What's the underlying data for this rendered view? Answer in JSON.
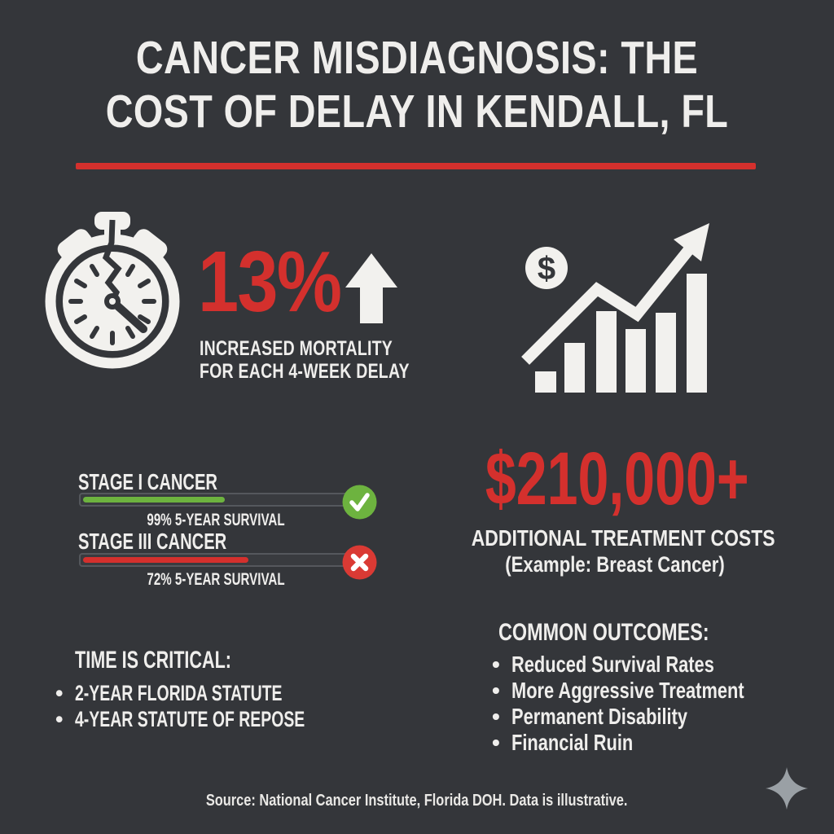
{
  "infographic": {
    "title_line1": "CANCER MISDIAGNOSIS: THE",
    "title_line2": "COST OF DELAY IN KENDALL, FL",
    "source_note": "Source: National Cancer Institute, Florida DOH. Data is illustrative."
  },
  "colors": {
    "background": "#34363a",
    "accent_red": "#d4302d",
    "text_white": "#efeeec",
    "success_green": "#6db33f",
    "error_red": "#da3a34",
    "sparkle_gray": "#9aa0a5"
  },
  "mortality_stat": {
    "value": "13%",
    "caption_line1": "INCREASED MORTALITY",
    "caption_line2": "FOR EACH 4-WEEK DELAY",
    "icon": "cracked-stopwatch",
    "trend_icon": "up-arrow"
  },
  "cost_stat": {
    "value": "$210,000+",
    "caption_line1": "ADDITIONAL TREATMENT COSTS",
    "caption_line2": "(Example: Breast Cancer)",
    "icon": "dollar-rising-bar-chart",
    "icon_symbol": "$"
  },
  "survival": {
    "rows": [
      {
        "label": "STAGE I CANCER",
        "caption": "99% 5-YEAR SURVIVAL",
        "fill_percent": 49,
        "status": "pass"
      },
      {
        "label": "STAGE III CANCER",
        "caption": "72% 5-YEAR SURVIVAL",
        "fill_percent": 57,
        "status": "fail"
      }
    ]
  },
  "time_critical": {
    "heading": "TIME IS CRITICAL:",
    "items": [
      "2-YEAR FLORIDA STATUTE",
      "4-YEAR STATUTE OF REPOSE"
    ]
  },
  "common_outcomes": {
    "heading": "COMMON OUTCOMES:",
    "items": [
      "Reduced Survival Rates",
      "More Aggressive Treatment",
      "Permanent Disability",
      "Financial Ruin"
    ]
  },
  "chart_data": {
    "type": "bar",
    "title": "Cancer Misdiagnosis: The Cost of Delay in Kendall, FL",
    "categories": [
      "Stage I Cancer",
      "Stage III Cancer"
    ],
    "values": [
      99,
      72
    ],
    "ylabel": "5-Year Survival (%)",
    "legend_position": "none",
    "grid": false,
    "annotations": [
      "13% increased mortality for each 4-week delay",
      "$210,000+ additional treatment costs (Example: Breast Cancer)",
      "2-year Florida statute; 4-year statute of repose",
      "Common outcomes: Reduced Survival Rates, More Aggressive Treatment, Permanent Disability, Financial Ruin"
    ]
  }
}
